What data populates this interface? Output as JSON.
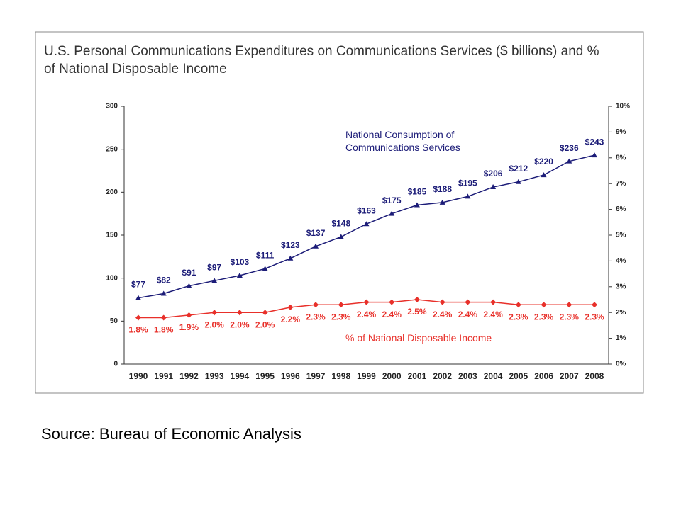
{
  "chart_data": {
    "type": "line",
    "title": "U.S. Personal Communications Expenditures on Communications Services ($ billions) and % of National Disposable Income",
    "source": "Source: Bureau of Economic Analysis",
    "categories": [
      "1990",
      "1991",
      "1992",
      "1993",
      "1994",
      "1995",
      "1996",
      "1997",
      "1998",
      "1999",
      "2000",
      "2001",
      "2002",
      "2003",
      "2004",
      "2005",
      "2006",
      "2007",
      "2008"
    ],
    "series": [
      {
        "name": "National Consumption of Communications Services",
        "color": "#1c1c78",
        "marker": "triangle",
        "axis": "y",
        "values": [
          77,
          82,
          91,
          97,
          103,
          111,
          123,
          137,
          148,
          163,
          175,
          185,
          188,
          195,
          206,
          212,
          220,
          236,
          243
        ],
        "value_labels": [
          "$77",
          "$82",
          "$91",
          "$97",
          "$103",
          "$111",
          "$123",
          "$137",
          "$148",
          "$163",
          "$175",
          "$185",
          "$188",
          "$195",
          "$206",
          "$212",
          "$220",
          "$236",
          "$243"
        ]
      },
      {
        "name": "% of National Disposable Income",
        "color": "#e8302a",
        "marker": "diamond",
        "axis": "y2",
        "values": [
          1.8,
          1.8,
          1.9,
          2.0,
          2.0,
          2.0,
          2.2,
          2.3,
          2.3,
          2.4,
          2.4,
          2.5,
          2.4,
          2.4,
          2.4,
          2.3,
          2.3,
          2.3,
          2.3
        ],
        "value_labels": [
          "1.8%",
          "1.8%",
          "1.9%",
          "2.0%",
          "2.0%",
          "2.0%",
          "2.2%",
          "2.3%",
          "2.3%",
          "2.4%",
          "2.4%",
          "2.5%",
          "2.4%",
          "2.4%",
          "2.4%",
          "2.3%",
          "2.3%",
          "2.3%",
          "2.3%"
        ]
      }
    ],
    "ylim": [
      0,
      300
    ],
    "yticks": [
      0,
      50,
      100,
      150,
      200,
      250,
      300
    ],
    "y2lim": [
      0,
      10
    ],
    "y2ticks": [
      {
        "value": 0,
        "label": "0%"
      },
      {
        "value": 1,
        "label": "1%"
      },
      {
        "value": 2,
        "label": "2%"
      },
      {
        "value": 3,
        "label": "3%"
      },
      {
        "value": 4,
        "label": "4%"
      },
      {
        "value": 5,
        "label": "5%"
      },
      {
        "value": 6,
        "label": "6%"
      },
      {
        "value": 7,
        "label": "7%"
      },
      {
        "value": 8,
        "label": "8%"
      },
      {
        "value": 9,
        "label": "9%"
      },
      {
        "value": 10,
        "label": "10%"
      }
    ],
    "grid": false
  }
}
